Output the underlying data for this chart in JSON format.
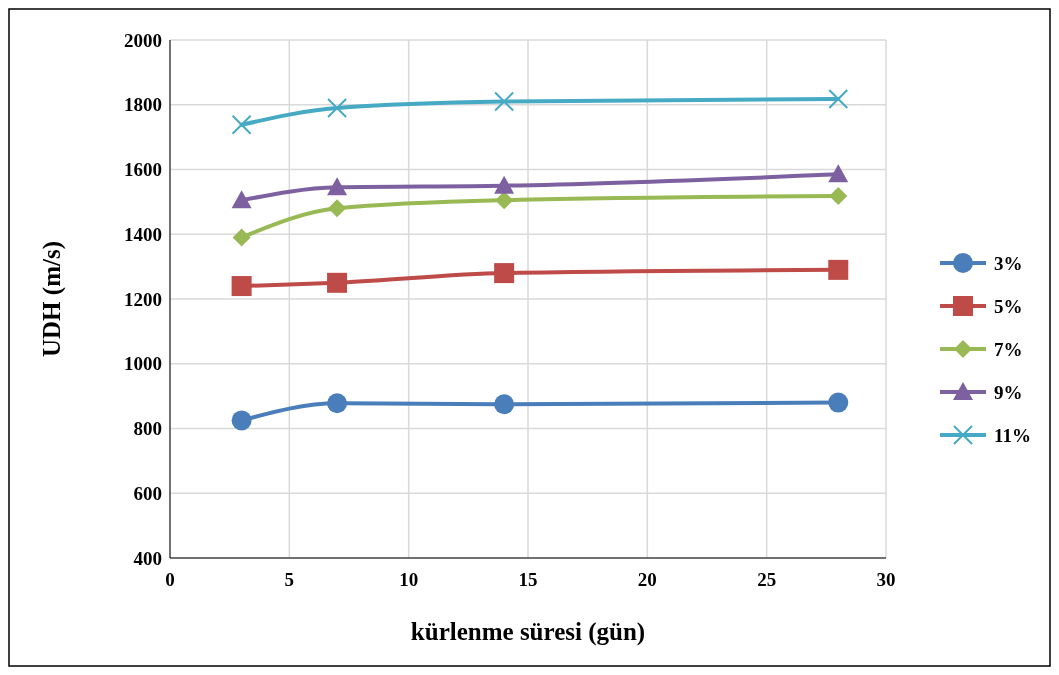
{
  "chart_data": {
    "type": "line",
    "xlabel": "kürlenme süresi (gün)",
    "ylabel": "UDH (m/s)",
    "x": [
      3,
      7,
      14,
      28
    ],
    "xlim": [
      0,
      30
    ],
    "xticks": [
      0,
      5,
      10,
      15,
      20,
      25,
      30
    ],
    "ylim": [
      400,
      2000
    ],
    "yticks": [
      400,
      600,
      800,
      1000,
      1200,
      1400,
      1600,
      1800,
      2000
    ],
    "grid": true,
    "legend": "right",
    "series": [
      {
        "name": "3%",
        "color": "#4a7ebb",
        "marker": "circle",
        "values": [
          825,
          878,
          875,
          880
        ]
      },
      {
        "name": "5%",
        "color": "#be4b48",
        "marker": "square",
        "values": [
          1240,
          1250,
          1280,
          1290
        ]
      },
      {
        "name": "7%",
        "color": "#98b954",
        "marker": "diamond",
        "values": [
          1390,
          1480,
          1505,
          1518
        ]
      },
      {
        "name": "9%",
        "color": "#7d60a0",
        "marker": "triangle",
        "values": [
          1505,
          1545,
          1550,
          1585
        ]
      },
      {
        "name": "11%",
        "color": "#46aac5",
        "marker": "cross",
        "values": [
          1738,
          1790,
          1810,
          1818
        ]
      }
    ]
  }
}
